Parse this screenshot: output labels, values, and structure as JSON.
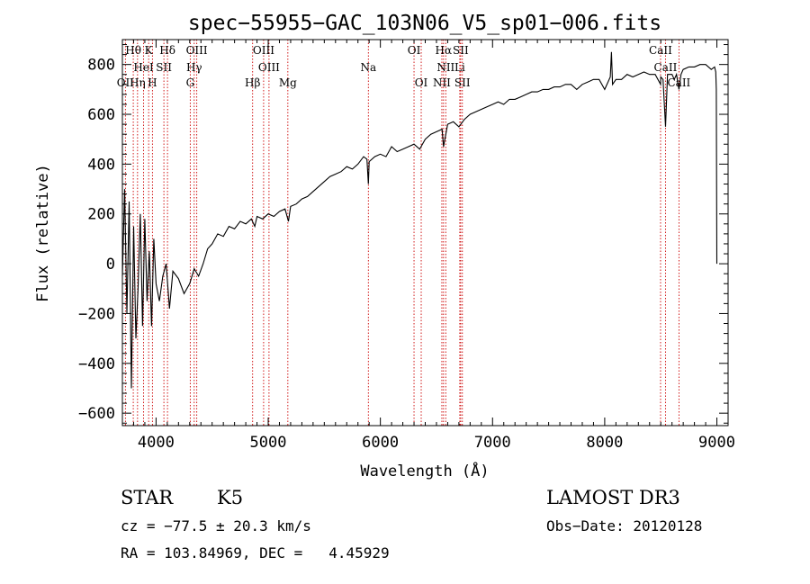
{
  "chart_data": {
    "type": "line",
    "title": "spec−55955−GAC_103N06_V5_sp01−006.fits",
    "xlabel": "Wavelength (Å)",
    "ylabel": "Flux (relative)",
    "xlim": [
      3700,
      9100
    ],
    "ylim": [
      -650,
      900
    ],
    "xticks": [
      4000,
      5000,
      6000,
      7000,
      8000,
      9000
    ],
    "xtick_labels": [
      "4000",
      "5000",
      "6000",
      "7000",
      "8000",
      "9000"
    ],
    "yticks": [
      -600,
      -400,
      -200,
      0,
      200,
      400,
      600,
      800
    ],
    "ytick_labels": [
      "−600",
      "−400",
      "−200",
      "0",
      "200",
      "400",
      "600",
      "800"
    ],
    "series": [
      {
        "name": "flux",
        "x": [
          3700,
          3720,
          3740,
          3760,
          3780,
          3800,
          3820,
          3840,
          3860,
          3880,
          3900,
          3920,
          3940,
          3960,
          3980,
          4000,
          4030,
          4060,
          4090,
          4120,
          4150,
          4200,
          4250,
          4300,
          4340,
          4380,
          4420,
          4460,
          4500,
          4550,
          4600,
          4650,
          4700,
          4750,
          4800,
          4850,
          4880,
          4900,
          4950,
          5000,
          5050,
          5100,
          5150,
          5180,
          5200,
          5250,
          5300,
          5350,
          5400,
          5450,
          5500,
          5550,
          5600,
          5650,
          5700,
          5750,
          5800,
          5850,
          5880,
          5893,
          5900,
          5950,
          6000,
          6050,
          6100,
          6150,
          6200,
          6250,
          6300,
          6350,
          6400,
          6450,
          6500,
          6550,
          6563,
          6600,
          6650,
          6700,
          6750,
          6800,
          6850,
          6900,
          6950,
          7000,
          7050,
          7100,
          7150,
          7200,
          7250,
          7300,
          7350,
          7400,
          7450,
          7500,
          7550,
          7600,
          7650,
          7700,
          7750,
          7800,
          7850,
          7900,
          7950,
          8000,
          8050,
          8060,
          8070,
          8100,
          8150,
          8200,
          8250,
          8300,
          8350,
          8400,
          8450,
          8498,
          8500,
          8520,
          8542,
          8560,
          8580,
          8600,
          8620,
          8640,
          8662,
          8680,
          8700,
          8750,
          8800,
          8850,
          8900,
          8950,
          8980,
          8990,
          8995,
          9000
        ],
        "values": [
          -50,
          300,
          -200,
          250,
          -500,
          150,
          -300,
          -100,
          200,
          -250,
          180,
          -150,
          50,
          -250,
          100,
          -80,
          -150,
          -50,
          0,
          -180,
          -30,
          -60,
          -120,
          -80,
          -20,
          -50,
          0,
          60,
          80,
          120,
          110,
          150,
          140,
          170,
          160,
          180,
          150,
          190,
          180,
          200,
          190,
          210,
          220,
          170,
          230,
          240,
          260,
          270,
          290,
          310,
          330,
          350,
          360,
          370,
          390,
          380,
          400,
          430,
          420,
          320,
          410,
          430,
          440,
          430,
          470,
          450,
          460,
          470,
          480,
          460,
          500,
          520,
          530,
          540,
          470,
          560,
          570,
          550,
          580,
          600,
          610,
          620,
          630,
          640,
          650,
          640,
          660,
          660,
          670,
          680,
          690,
          690,
          700,
          700,
          710,
          710,
          720,
          720,
          700,
          720,
          730,
          740,
          740,
          700,
          750,
          850,
          720,
          740,
          740,
          760,
          750,
          760,
          770,
          760,
          760,
          720,
          750,
          740,
          550,
          760,
          760,
          760,
          740,
          760,
          700,
          760,
          780,
          790,
          790,
          800,
          800,
          780,
          790,
          770,
          700,
          0
        ]
      }
    ],
    "spectral_lines": [
      {
        "label": "Hθ",
        "wavelength": 3797,
        "row": 0
      },
      {
        "label": "K",
        "wavelength": 3934,
        "row": 0
      },
      {
        "label": "Hδ",
        "wavelength": 4102,
        "row": 0
      },
      {
        "label": "OIII",
        "wavelength": 4363,
        "row": 0
      },
      {
        "label": "OIII",
        "wavelength": 4959,
        "row": 0
      },
      {
        "label": "OI",
        "wavelength": 6300,
        "row": 0
      },
      {
        "label": "Hα",
        "wavelength": 6563,
        "row": 0
      },
      {
        "label": "SII",
        "wavelength": 6716,
        "row": 0
      },
      {
        "label": "CaII",
        "wavelength": 8498,
        "row": 0
      },
      {
        "label": "HeI",
        "wavelength": 3889,
        "row": 1
      },
      {
        "label": "SII",
        "wavelength": 4070,
        "row": 1
      },
      {
        "label": "Hγ",
        "wavelength": 4340,
        "row": 1
      },
      {
        "label": "OIII",
        "wavelength": 5007,
        "row": 1
      },
      {
        "label": "Na",
        "wavelength": 5893,
        "row": 1
      },
      {
        "label": "NII",
        "wavelength": 6583,
        "row": 1
      },
      {
        "label": "Li",
        "wavelength": 6708,
        "row": 1
      },
      {
        "label": "CaII",
        "wavelength": 8542,
        "row": 1
      },
      {
        "label": "OII",
        "wavelength": 3727,
        "row": 2
      },
      {
        "label": "Hη",
        "wavelength": 3835,
        "row": 2
      },
      {
        "label": "H",
        "wavelength": 3968,
        "row": 2
      },
      {
        "label": "G",
        "wavelength": 4305,
        "row": 2
      },
      {
        "label": "Hβ",
        "wavelength": 4861,
        "row": 2
      },
      {
        "label": "Mg",
        "wavelength": 5175,
        "row": 2
      },
      {
        "label": "OI",
        "wavelength": 6364,
        "row": 2
      },
      {
        "label": "NII",
        "wavelength": 6548,
        "row": 2
      },
      {
        "label": "SII",
        "wavelength": 6731,
        "row": 2
      },
      {
        "label": "CaII",
        "wavelength": 8662,
        "row": 2
      }
    ]
  },
  "info": {
    "class": "STAR",
    "subclass": "K5",
    "survey": "LAMOST DR3",
    "cz": "cz = −77.5 ± 20.3 km/s",
    "obs_date": "Obs−Date: 20120128",
    "radec": "RA = 103.84969, DEC =   4.45929"
  },
  "colors": {
    "line_marker": "#cc0000",
    "spectrum": "#000000"
  }
}
